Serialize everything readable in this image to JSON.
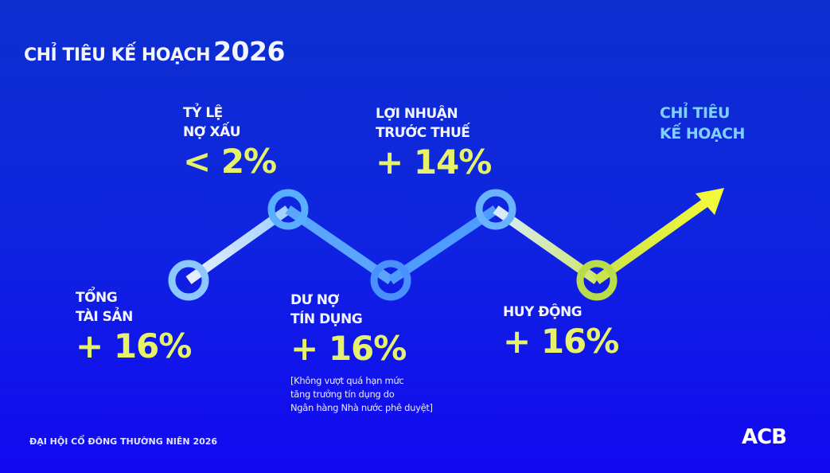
{
  "title": {
    "text": "CHỈ TIÊU KẾ HOẠCH",
    "year": "2026"
  },
  "metrics": [
    {
      "label1": "TỔNG",
      "label2": "TÀI SẢN",
      "value": "+ 16%"
    },
    {
      "label1": "TỶ LỆ",
      "label2": "NỢ XẤU",
      "value": "< 2%"
    },
    {
      "label1": "DƯ NỢ",
      "label2": "TÍN DỤNG",
      "value": "+ 16%",
      "note": [
        "[Không vượt quá hạn mức",
        "tăng trưởng tín dụng do",
        "Ngân hàng Nhà nước phê duyệt]"
      ]
    },
    {
      "label1": "LỢI NHUẬN",
      "label2": "TRƯỚC THUẾ",
      "value": "+ 14%"
    },
    {
      "label1": "HUY ĐỘNG",
      "value": "+ 16%"
    }
  ],
  "arrow_label": {
    "line1": "CHỈ TIÊU",
    "line2": "KẾ HOẠCH"
  },
  "footer": "ĐẠI HỘI CỔ ĐÔNG THƯỜNG NIÊN 2026",
  "logo": "ACB",
  "colors": {
    "value": "#e6f36a",
    "accent": "#7fd0ff",
    "arrow": "#eef53a"
  }
}
